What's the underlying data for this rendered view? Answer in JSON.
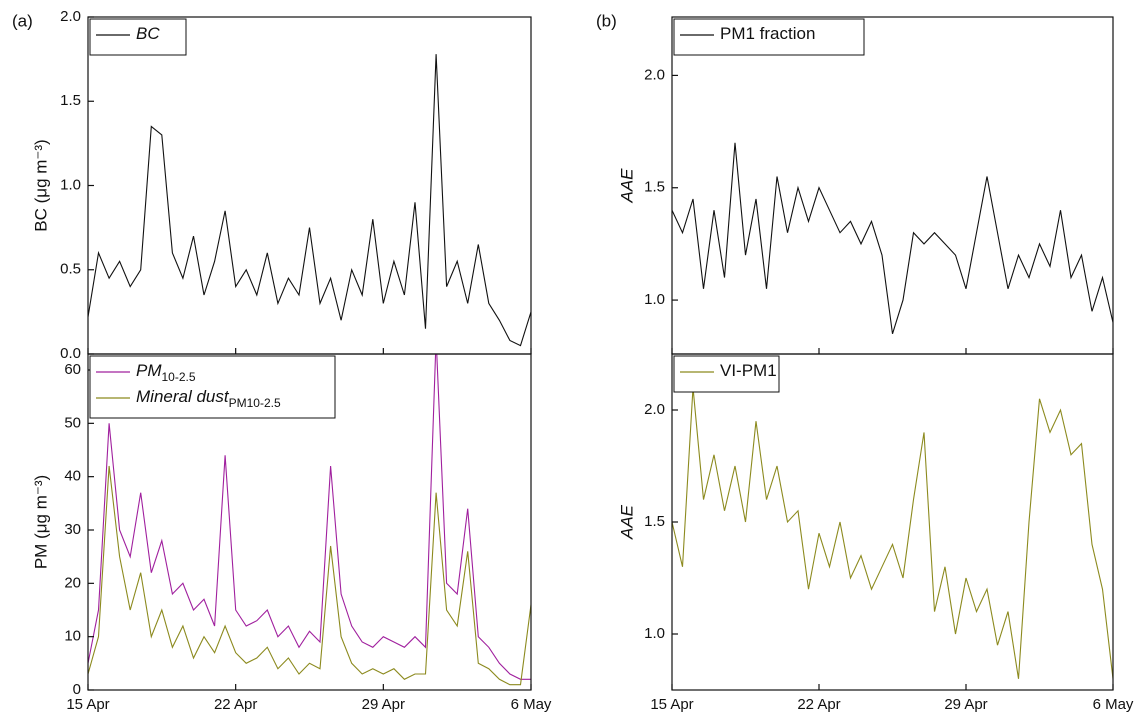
{
  "chart_data": [
    {
      "type": "line",
      "panel_label": "(a)",
      "ylabel": "BC (μg m⁻³)",
      "show_xtick_labels": false,
      "x": [
        0,
        0.5,
        1,
        1.5,
        2,
        2.5,
        3,
        3.5,
        4,
        4.5,
        5,
        5.5,
        6,
        6.5,
        7,
        7.5,
        8,
        8.5,
        9,
        9.5,
        10,
        10.5,
        11,
        11.5,
        12,
        12.5,
        13,
        13.5,
        14,
        14.5,
        15,
        15.5,
        16,
        16.5,
        17,
        17.5,
        18,
        18.5,
        19,
        19.5,
        20,
        20.5,
        21
      ],
      "series": [
        {
          "name": "BC",
          "color": "#111111",
          "values": [
            0.22,
            0.6,
            0.45,
            0.55,
            0.4,
            0.5,
            1.35,
            1.3,
            0.6,
            0.45,
            0.7,
            0.35,
            0.55,
            0.85,
            0.4,
            0.5,
            0.35,
            0.6,
            0.3,
            0.45,
            0.35,
            0.75,
            0.3,
            0.45,
            0.2,
            0.5,
            0.35,
            0.8,
            0.3,
            0.55,
            0.35,
            0.9,
            0.15,
            1.78,
            0.4,
            0.55,
            0.3,
            0.65,
            0.3,
            0.2,
            0.08,
            0.05,
            0.25
          ]
        }
      ],
      "xlim": [
        0,
        21
      ],
      "xticks": [
        0,
        7,
        14,
        21
      ],
      "ylim": [
        0,
        2
      ],
      "yticks": [
        {
          "value": 0,
          "label": "0.0"
        },
        {
          "value": 0.5,
          "label": "0.5"
        },
        {
          "value": 1,
          "label": "1.0"
        },
        {
          "value": 1.5,
          "label": "1.5"
        },
        {
          "value": 2,
          "label": "2.0"
        }
      ]
    },
    {
      "type": "line",
      "ylabel": "PM (μg m⁻³)",
      "show_xtick_labels": true,
      "x": [
        0,
        0.5,
        1,
        1.5,
        2,
        2.5,
        3,
        3.5,
        4,
        4.5,
        5,
        5.5,
        6,
        6.5,
        7,
        7.5,
        8,
        8.5,
        9,
        9.5,
        10,
        10.5,
        11,
        11.5,
        12,
        12.5,
        13,
        13.5,
        14,
        14.5,
        15,
        15.5,
        16,
        16.5,
        17,
        17.5,
        18,
        18.5,
        19,
        19.5,
        20,
        20.5,
        21
      ],
      "series": [
        {
          "name": "PM",
          "name_subscript": "10-2.5",
          "color": "#a0209e",
          "values": [
            5,
            15,
            50,
            30,
            25,
            37,
            22,
            28,
            18,
            20,
            15,
            17,
            12,
            44,
            15,
            12,
            13,
            15,
            10,
            12,
            8,
            11,
            9,
            42,
            18,
            12,
            9,
            8,
            10,
            9,
            8,
            10,
            8,
            66,
            20,
            18,
            34,
            10,
            8,
            5,
            3,
            2,
            2
          ]
        },
        {
          "name": "Mineral dust",
          "name_subscript": "PM10-2.5",
          "color": "#8c8a1e",
          "values": [
            3,
            10,
            42,
            25,
            15,
            22,
            10,
            15,
            8,
            12,
            6,
            10,
            7,
            12,
            7,
            5,
            6,
            8,
            4,
            6,
            3,
            5,
            4,
            27,
            10,
            5,
            3,
            4,
            3,
            4,
            2,
            3,
            3,
            37,
            15,
            12,
            26,
            5,
            4,
            2,
            1,
            1,
            16
          ]
        }
      ],
      "xlim": [
        0,
        21
      ],
      "xticks": [
        {
          "value": 0,
          "label": "15 Apr"
        },
        {
          "value": 7,
          "label": "22 Apr"
        },
        {
          "value": 14,
          "label": "29 Apr"
        },
        {
          "value": 21,
          "label": "6 May"
        }
      ],
      "ylim": [
        0,
        63
      ],
      "yticks": [
        0,
        10,
        20,
        30,
        40,
        50,
        60
      ]
    },
    {
      "type": "line",
      "panel_label": "(b)",
      "ylabel": "AAE",
      "show_xtick_labels": false,
      "x": [
        0,
        0.5,
        1,
        1.5,
        2,
        2.5,
        3,
        3.5,
        4,
        4.5,
        5,
        5.5,
        6,
        6.5,
        7,
        7.5,
        8,
        8.5,
        9,
        9.5,
        10,
        10.5,
        11,
        11.5,
        12,
        12.5,
        13,
        13.5,
        14,
        14.5,
        15,
        15.5,
        16,
        16.5,
        17,
        17.5,
        18,
        18.5,
        19,
        19.5,
        20,
        20.5,
        21
      ],
      "series": [
        {
          "name": "PM1 fraction",
          "color": "#111111",
          "values": [
            1.4,
            1.3,
            1.45,
            1.05,
            1.4,
            1.1,
            1.7,
            1.2,
            1.45,
            1.05,
            1.55,
            1.3,
            1.5,
            1.35,
            1.5,
            1.4,
            1.3,
            1.35,
            1.25,
            1.35,
            1.2,
            0.85,
            1.0,
            1.3,
            1.25,
            1.3,
            1.25,
            1.2,
            1.05,
            1.3,
            1.55,
            1.3,
            1.05,
            1.2,
            1.1,
            1.25,
            1.15,
            1.4,
            1.1,
            1.2,
            0.95,
            1.1,
            0.9
          ]
        }
      ],
      "xlim": [
        0,
        21
      ],
      "xticks": [
        0,
        7,
        14,
        21
      ],
      "ylim": [
        0.76,
        2.26
      ],
      "yticks": [
        {
          "value": 1,
          "label": "1.0"
        },
        {
          "value": 1.5,
          "label": "1.5"
        },
        {
          "value": 2,
          "label": "2.0"
        }
      ]
    },
    {
      "type": "line",
      "ylabel": "AAE",
      "show_xtick_labels": true,
      "x": [
        0,
        0.5,
        1,
        1.5,
        2,
        2.5,
        3,
        3.5,
        4,
        4.5,
        5,
        5.5,
        6,
        6.5,
        7,
        7.5,
        8,
        8.5,
        9,
        9.5,
        10,
        10.5,
        11,
        11.5,
        12,
        12.5,
        13,
        13.5,
        14,
        14.5,
        15,
        15.5,
        16,
        16.5,
        17,
        17.5,
        18,
        18.5,
        19,
        19.5,
        20,
        20.5,
        21
      ],
      "series": [
        {
          "name": "VI-PM1",
          "color": "#8c8a1e",
          "values": [
            1.5,
            1.3,
            2.1,
            1.6,
            1.8,
            1.55,
            1.75,
            1.5,
            1.95,
            1.6,
            1.75,
            1.5,
            1.55,
            1.2,
            1.45,
            1.3,
            1.5,
            1.25,
            1.35,
            1.2,
            1.3,
            1.4,
            1.25,
            1.6,
            1.9,
            1.1,
            1.3,
            1.0,
            1.25,
            1.1,
            1.2,
            0.95,
            1.1,
            0.8,
            1.5,
            2.05,
            1.9,
            2.0,
            1.8,
            1.85,
            1.4,
            1.2,
            0.8
          ]
        }
      ],
      "xlim": [
        0,
        21
      ],
      "xticks": [
        {
          "value": 0,
          "label": "15 Apr"
        },
        {
          "value": 7,
          "label": "22 Apr"
        },
        {
          "value": 14,
          "label": "29 Apr"
        },
        {
          "value": 21,
          "label": "6 May"
        }
      ],
      "ylim": [
        0.75,
        2.25
      ],
      "yticks": [
        {
          "value": 1,
          "label": "1.0"
        },
        {
          "value": 1.5,
          "label": "1.5"
        },
        {
          "value": 2,
          "label": "2.0"
        }
      ]
    }
  ]
}
